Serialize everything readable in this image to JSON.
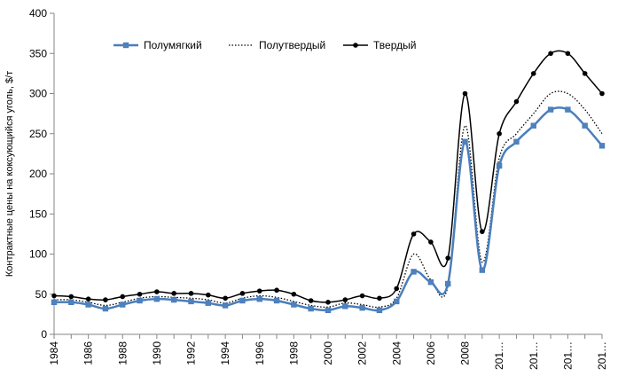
{
  "chart_data": {
    "type": "line",
    "title": "",
    "xlabel": "",
    "ylabel": "Контрактные цены на коксующийся уголь, $/т",
    "ylim": [
      0,
      400
    ],
    "yticks": [
      0,
      50,
      100,
      150,
      200,
      250,
      300,
      350,
      400
    ],
    "grid": false,
    "legend_position": "top",
    "x": [
      1984,
      1985,
      1986,
      1987,
      1988,
      1989,
      1990,
      1991,
      1992,
      1993,
      1994,
      1995,
      1996,
      1997,
      1998,
      1999,
      2000,
      2001,
      2002,
      2003,
      2004,
      2005,
      2006,
      2007,
      2008,
      2009,
      2010,
      2011,
      2012,
      2013,
      2014,
      2015,
      2016
    ],
    "xtick_labels": [
      "1984",
      "1986",
      "1988",
      "1990",
      "1992",
      "1994",
      "1996",
      "1998",
      "2000",
      "2002",
      "2004",
      "2006",
      "2008",
      "201…",
      "201…",
      "201…",
      "201…"
    ],
    "series": [
      {
        "name": "Полумягкий",
        "color": "#4a7ebb",
        "style": "solid-square",
        "values": [
          40,
          40,
          37,
          32,
          37,
          42,
          44,
          43,
          41,
          39,
          36,
          42,
          44,
          42,
          37,
          32,
          30,
          35,
          33,
          30,
          41,
          78,
          65,
          63,
          240,
          80,
          210,
          240,
          260,
          280,
          280,
          260,
          235
        ]
      },
      {
        "name": "Полутвердый",
        "color": "#000000",
        "style": "dotted",
        "values": [
          43,
          43,
          40,
          36,
          40,
          45,
          47,
          46,
          45,
          43,
          39,
          45,
          48,
          46,
          41,
          36,
          34,
          39,
          37,
          34,
          45,
          100,
          68,
          60,
          260,
          90,
          220,
          250,
          275,
          300,
          300,
          280,
          250
        ]
      },
      {
        "name": "Твердый",
        "color": "#000000",
        "style": "solid-dot",
        "values": [
          48,
          47,
          44,
          43,
          47,
          50,
          53,
          51,
          51,
          49,
          45,
          51,
          54,
          55,
          50,
          42,
          40,
          43,
          48,
          45,
          57,
          125,
          115,
          95,
          300,
          128,
          250,
          290,
          325,
          350,
          350,
          325,
          300
        ]
      }
    ]
  }
}
